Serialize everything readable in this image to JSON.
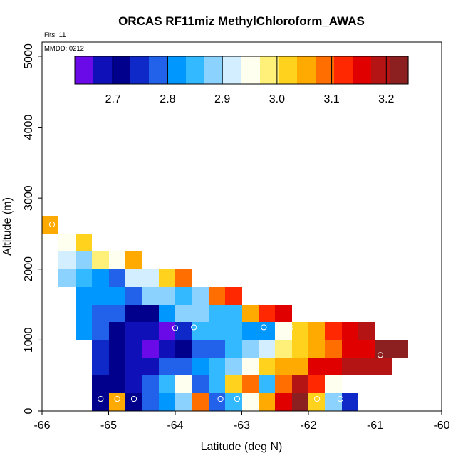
{
  "chart_data": {
    "type": "heatmap",
    "title": "ORCAS RF11miz MethylChloroform_AWAS",
    "annotations": [
      "Flts: 11",
      "MMDD: 0212"
    ],
    "xlabel": "Latitude (deg N)",
    "ylabel": "Altitude (m)",
    "xlim": [
      -66,
      -60
    ],
    "ylim": [
      0,
      5200
    ],
    "xticks": [
      -66,
      -65,
      -64,
      -63,
      -62,
      -61,
      -60
    ],
    "xtick_labels": [
      "-66",
      "-65",
      "-64",
      "-63",
      "-62",
      "-61",
      "-60"
    ],
    "yticks": [
      0,
      1000,
      2000,
      3000,
      4000,
      5000
    ],
    "ytick_labels": [
      "0",
      "1000",
      "2000",
      "3000",
      "4000",
      "5000"
    ],
    "x_bin_width": 0.25,
    "y_bin_height": 250,
    "colorbar": {
      "min": 2.63,
      "max": 3.24,
      "ticks": [
        2.7,
        2.8,
        2.9,
        3.0,
        3.1,
        3.2
      ],
      "tick_labels": [
        "2.7",
        "2.8",
        "2.9",
        "3.0",
        "3.1",
        "3.2"
      ],
      "colors": [
        "#6a0ae8",
        "#1010b8",
        "#00008c",
        "#0f28c8",
        "#2262ea",
        "#0098ff",
        "#32b9ff",
        "#8cd2ff",
        "#d2eeff",
        "#fffff0",
        "#fff07a",
        "#ffd21e",
        "#ffaa00",
        "#ff6e00",
        "#ff2800",
        "#e00000",
        "#b41414",
        "#8c2020"
      ]
    },
    "rows": [
      {
        "y": 0,
        "x0": -65.25,
        "values": [
          2.73,
          3.04,
          2.7,
          2.79,
          2.82,
          2.9,
          3.08,
          2.79,
          2.86,
          2.94,
          3.04,
          3.17,
          3.22,
          3.02,
          2.87,
          2.76
        ]
      },
      {
        "y": 250,
        "x0": -65.25,
        "values": [
          2.72,
          2.7,
          2.68,
          2.78,
          2.84,
          2.95,
          2.79,
          2.86,
          3.03,
          3.1,
          2.86,
          3.09,
          3.19,
          3.12,
          2.94
        ]
      },
      {
        "y": 500,
        "x0": -65.25,
        "values": [
          2.75,
          2.7,
          2.67,
          2.69,
          2.77,
          2.78,
          2.82,
          2.84,
          2.89,
          2.95,
          3.01,
          3.05,
          3.07,
          3.14,
          3.16,
          3.18,
          3.19,
          3.2
        ]
      },
      {
        "y": 750,
        "x0": -65.25,
        "values": [
          2.76,
          2.7,
          2.68,
          2.64,
          2.68,
          2.72,
          2.78,
          2.79,
          2.84,
          2.87,
          2.93,
          2.99,
          3.02,
          3.05,
          3.09,
          3.15,
          3.17,
          3.21,
          3.24
        ]
      },
      {
        "y": 1000,
        "x0": -65.5,
        "values": [
          2.8,
          2.77,
          2.71,
          2.68,
          2.67,
          2.64,
          2.74,
          2.84,
          2.86,
          2.84,
          2.82,
          2.83,
          2.94,
          3.02,
          3.06,
          3.12,
          3.15,
          3.18
        ]
      },
      {
        "y": 1250,
        "x0": -65.5,
        "values": [
          2.81,
          2.79,
          2.77,
          2.71,
          2.7,
          2.82,
          2.88,
          2.87,
          2.86,
          2.86,
          3.04,
          3.12,
          3.17
        ]
      },
      {
        "y": 1500,
        "x0": -65.5,
        "values": [
          2.83,
          2.8,
          2.8,
          2.79,
          2.9,
          2.87,
          2.86,
          2.89,
          3.08,
          3.13
        ]
      },
      {
        "y": 1750,
        "x0": -65.75,
        "values": [
          2.88,
          2.85,
          2.81,
          2.79,
          2.91,
          2.91,
          3.02,
          3.08
        ]
      },
      {
        "y": 2000,
        "x0": -65.75,
        "values": [
          2.91,
          2.87,
          2.97,
          2.96,
          3.05
        ]
      },
      {
        "y": 2250,
        "x0": -65.75,
        "values": [
          2.96,
          3.01
        ]
      },
      {
        "y": 2500,
        "x0": -66.0,
        "values": [
          3.04
        ]
      }
    ],
    "sample_points": [
      {
        "x": -65.12,
        "y": 170
      },
      {
        "x": -64.87,
        "y": 170
      },
      {
        "x": -64.62,
        "y": 170
      },
      {
        "x": -64.0,
        "y": 1170
      },
      {
        "x": -63.72,
        "y": 1180
      },
      {
        "x": -63.32,
        "y": 170
      },
      {
        "x": -63.07,
        "y": 170
      },
      {
        "x": -62.67,
        "y": 1180
      },
      {
        "x": -62.27,
        "y": 1180
      },
      {
        "x": -61.87,
        "y": 170
      },
      {
        "x": -61.52,
        "y": 170
      },
      {
        "x": -61.22,
        "y": 170
      },
      {
        "x": -61.0,
        "y": 170
      },
      {
        "x": -60.92,
        "y": 790
      },
      {
        "x": -65.85,
        "y": 2630
      }
    ]
  }
}
